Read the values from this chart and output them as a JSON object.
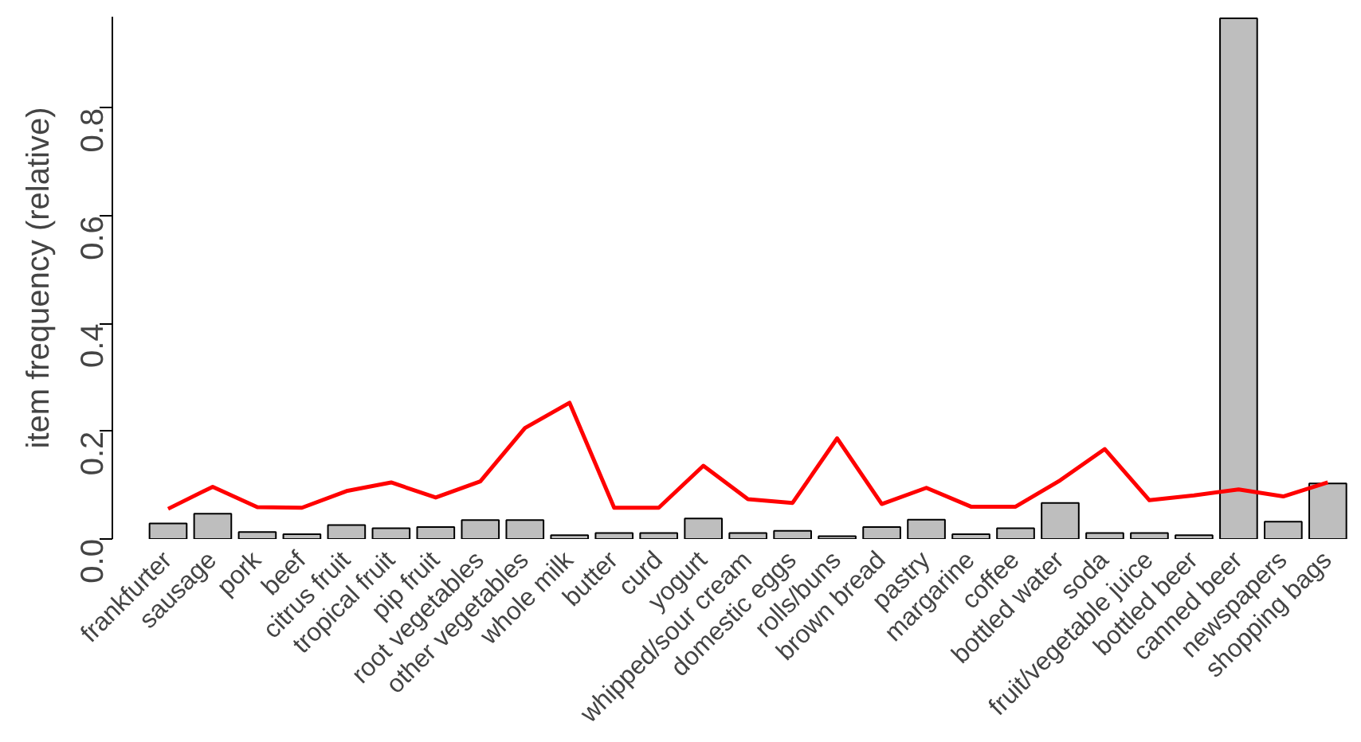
{
  "chart_data": {
    "type": "bar",
    "ylabel": "item frequency (relative)",
    "ylim": [
      0,
      0.97
    ],
    "yticks": [
      {
        "value": 0,
        "label": "0.0"
      },
      {
        "value": 0.2,
        "label": "0.2"
      },
      {
        "value": 0.4,
        "label": "0.4"
      },
      {
        "value": 0.6,
        "label": "0.6"
      },
      {
        "value": 0.8,
        "label": "0.8"
      }
    ],
    "grid": false,
    "categories": [
      "frankfurter",
      "sausage",
      "pork",
      "beef",
      "citrus fruit",
      "tropical fruit",
      "pip fruit",
      "root vegetables",
      "other vegetables",
      "whole milk",
      "butter",
      "curd",
      "yogurt",
      "whipped/sour cream",
      "domestic eggs",
      "rolls/buns",
      "brown bread",
      "pastry",
      "margarine",
      "coffee",
      "bottled water",
      "soda",
      "fruit/vegetable juice",
      "bottled beer",
      "canned beer",
      "newspapers",
      "shopping bags"
    ],
    "series": [
      {
        "color": "#bebebe",
        "values": [
          0.029,
          0.047,
          0.013,
          0.009,
          0.026,
          0.02,
          0.022,
          0.035,
          0.035,
          0.007,
          0.011,
          0.011,
          0.038,
          0.011,
          0.015,
          0.005,
          0.022,
          0.036,
          0.009,
          0.02,
          0.067,
          0.011,
          0.011,
          0.007,
          0.967,
          0.032,
          0.103
        ]
      },
      {
        "type": "line",
        "color": "#ff0000",
        "values": [
          0.056,
          0.097,
          0.059,
          0.058,
          0.089,
          0.105,
          0.077,
          0.107,
          0.206,
          0.253,
          0.058,
          0.058,
          0.136,
          0.074,
          0.067,
          0.187,
          0.065,
          0.095,
          0.06,
          0.06,
          0.109,
          0.167,
          0.072,
          0.081,
          0.092,
          0.079,
          0.105
        ]
      }
    ]
  }
}
